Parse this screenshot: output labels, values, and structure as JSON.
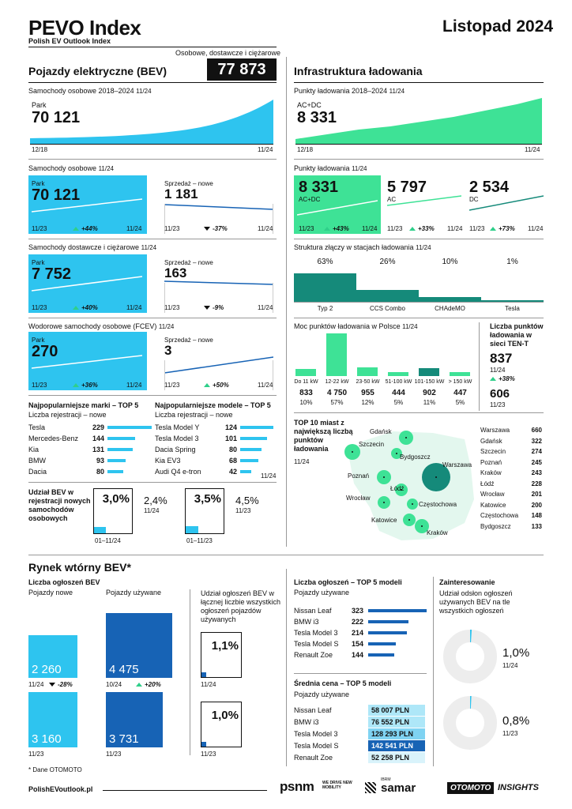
{
  "header": {
    "logo": "PEVO Index",
    "subtitle": "Polish EV Outlook Index",
    "period": "Listopad 2024",
    "bev_total_caption": "Osobowe, dostawcze i ciężarowe"
  },
  "bev": {
    "title": "Pojazdy elektryczne (BEV)",
    "total": "77 873",
    "park_section": {
      "title": "Samochody osobowe 2018–2024",
      "date": "11/24",
      "label": "Park",
      "value": "70 121",
      "x_start": "12/18",
      "x_end": "11/24"
    },
    "passenger": {
      "title": "Samochody osobowe",
      "date": "11/24",
      "park_label": "Park",
      "park_value": "70 121",
      "park_change": "+44%",
      "sales_label": "Sprzedaż – nowe",
      "sales_value": "1 181",
      "sales_change": "-37%",
      "x_start": "11/23",
      "x_end": "11/24"
    },
    "vans": {
      "title": "Samochody dostawcze i ciężarowe",
      "date": "11/24",
      "park_label": "Park",
      "park_value": "7 752",
      "park_change": "+40%",
      "sales_label": "Sprzedaż – nowe",
      "sales_value": "163",
      "sales_change": "-9%",
      "x_start": "11/23",
      "x_end": "11/24"
    },
    "fcev": {
      "title": "Wodorowe samochody osobowe (FCEV)",
      "date": "11/24",
      "park_label": "Park",
      "park_value": "270",
      "park_change": "+36%",
      "sales_label": "Sprzedaż – nowe",
      "sales_value": "3",
      "sales_change": "+50%",
      "x_start": "11/23",
      "x_end": "11/24"
    },
    "brands": {
      "title": "Najpopularniejsze marki – TOP 5",
      "subtitle": "Liczba rejestracji – nowe",
      "items": [
        {
          "name": "Tesla",
          "value": 229
        },
        {
          "name": "Mercedes-Benz",
          "value": 144
        },
        {
          "name": "Kia",
          "value": 131
        },
        {
          "name": "BMW",
          "value": 93
        },
        {
          "name": "Dacia",
          "value": 80
        }
      ]
    },
    "models": {
      "title": "Najpopularniejsze modele – TOP 5",
      "subtitle": "Liczba rejestracji – nowe",
      "date": "11/24",
      "items": [
        {
          "name": "Tesla Model Y",
          "value": 124
        },
        {
          "name": "Tesla Model 3",
          "value": 101
        },
        {
          "name": "Dacia Spring",
          "value": 80
        },
        {
          "name": "Kia EV3",
          "value": 68
        },
        {
          "name": "Audi Q4 e-tron",
          "value": 42
        }
      ]
    },
    "share": {
      "title": "Udział BEV w rejestracji nowych samochodów osobowych",
      "box1_value": "3,0%",
      "box1_label": "01–11/24",
      "side1_value": "2,4%",
      "side1_label": "11/24",
      "box2_value": "3,5%",
      "box2_label": "01–11/23",
      "side2_value": "4,5%",
      "side2_label": "11/23"
    }
  },
  "infra": {
    "title": "Infrastruktura ładowania",
    "points_history": {
      "title": "Punkty ładowania 2018–2024",
      "date": "11/24",
      "label": "AC+DC",
      "value": "8 331",
      "x_start": "12/18",
      "x_end": "11/24"
    },
    "points": {
      "title": "Punkty ładowania",
      "date": "11/24",
      "acdc_value": "8 331",
      "acdc_label": "AC+DC",
      "acdc_change": "+43%",
      "ac_value": "5 797",
      "ac_label": "AC",
      "ac_change": "+33%",
      "dc_value": "2 534",
      "dc_label": "DC",
      "dc_change": "+73%",
      "x_start": "11/23",
      "x_end": "11/24"
    },
    "connectors": {
      "title": "Struktura złączy w stacjach ładowania",
      "date": "11/24",
      "items": [
        {
          "name": "Typ 2",
          "pct": "63%",
          "value": 63
        },
        {
          "name": "CCS Combo",
          "pct": "26%",
          "value": 26
        },
        {
          "name": "CHAdeMO",
          "pct": "10%",
          "value": 10
        },
        {
          "name": "Tesla",
          "pct": "1%",
          "value": 1
        }
      ]
    },
    "power": {
      "title": "Moc punktów ładowania w Polsce",
      "date": "11/24",
      "items": [
        {
          "label": "Do 11 kW",
          "count": "833",
          "pct": "10%",
          "value": 10
        },
        {
          "label": "12-22 kW",
          "count": "4 750",
          "pct": "57%",
          "value": 57
        },
        {
          "label": "23-50 kW",
          "count": "955",
          "pct": "12%",
          "value": 12
        },
        {
          "label": "51-100 kW",
          "count": "444",
          "pct": "5%",
          "value": 5
        },
        {
          "label": "101-150 kW",
          "count": "902",
          "pct": "11%",
          "value": 11
        },
        {
          "label": "> 150 kW",
          "count": "447",
          "pct": "5%",
          "value": 5
        }
      ]
    },
    "tent": {
      "title": "Liczba punktów ładowania w sieci TEN-T",
      "value": "837",
      "date": "11/24",
      "change": "+38%",
      "prev_value": "606",
      "prev_date": "11/23"
    },
    "cities": {
      "title": "TOP 10 miast z największą liczbą punktów ładowania",
      "date": "11/24",
      "items": [
        {
          "name": "Warszawa",
          "value": "660"
        },
        {
          "name": "Gdańsk",
          "value": "322"
        },
        {
          "name": "Szczecin",
          "value": "274"
        },
        {
          "name": "Poznań",
          "value": "245"
        },
        {
          "name": "Kraków",
          "value": "243"
        },
        {
          "name": "Łódź",
          "value": "228"
        },
        {
          "name": "Wrocław",
          "value": "201"
        },
        {
          "name": "Katowice",
          "value": "200"
        },
        {
          "name": "Częstochowa",
          "value": "148"
        },
        {
          "name": "Bydgoszcz",
          "value": "133"
        }
      ]
    }
  },
  "secondary": {
    "title": "Rynek wtórny BEV*",
    "listings": {
      "title": "Liczba ogłoszeń BEV",
      "new_label": "Pojazdy nowe",
      "used_label": "Pojazdy używane",
      "new_now": "2 260",
      "new_now_date": "11/24",
      "new_change": "-28%",
      "new_prev": "3 160",
      "new_prev_date": "11/23",
      "used_now": "4 475",
      "used_now_date": "10/24",
      "used_change": "+20%",
      "used_prev": "3 731",
      "used_prev_date": "11/23"
    },
    "share": {
      "title": "Udział ogłoszeń BEV w łącznej liczbie wszystkich ogłoszeń pojazdów używanych",
      "now_value": "1,1%",
      "now_date": "11/24",
      "prev_value": "1,0%",
      "prev_date": "11/23"
    },
    "top_models": {
      "title": "Liczba ogłoszeń – TOP 5 modeli",
      "subtitle": "Pojazdy używane",
      "items": [
        {
          "name": "Nissan Leaf",
          "value": 323
        },
        {
          "name": "BMW i3",
          "value": 222
        },
        {
          "name": "Tesla Model 3",
          "value": 214
        },
        {
          "name": "Tesla Model S",
          "value": 154
        },
        {
          "name": "Renault Zoe",
          "value": 144
        }
      ]
    },
    "prices": {
      "title": "Średnia cena – TOP 5 modeli",
      "subtitle": "Pojazdy używane",
      "items": [
        {
          "name": "Nissan Leaf",
          "value": "58 007 PLN"
        },
        {
          "name": "BMW i3",
          "value": "76 552 PLN"
        },
        {
          "name": "Tesla Model 3",
          "value": "128 293 PLN"
        },
        {
          "name": "Tesla Model S",
          "value": "142 541 PLN"
        },
        {
          "name": "Renault Zoe",
          "value": "52 258 PLN"
        }
      ]
    },
    "interest": {
      "title": "Zainteresowanie",
      "subtitle": "Udział odsłon ogłoszeń używanych BEV na tle wszystkich ogłoszeń",
      "now_value": "1,0%",
      "now_date": "11/24",
      "prev_value": "0,8%",
      "prev_date": "11/23"
    },
    "footnote": "* Dane OTOMOTO"
  },
  "footer": {
    "url": "PolishEVoutlook.pl",
    "psnm": "psnm",
    "psnm_tag": "WE DRIVE NEW MOBILITY",
    "samar": "samar",
    "samar_tag": "IBRM",
    "otomoto": "OTOMOTO",
    "insights": "INSIGHTS"
  },
  "colors": {
    "cyan": "#2ec4ef",
    "green": "#3ee296",
    "navy": "#1763b5",
    "teal": "#158a7a",
    "dark": "#111111"
  }
}
